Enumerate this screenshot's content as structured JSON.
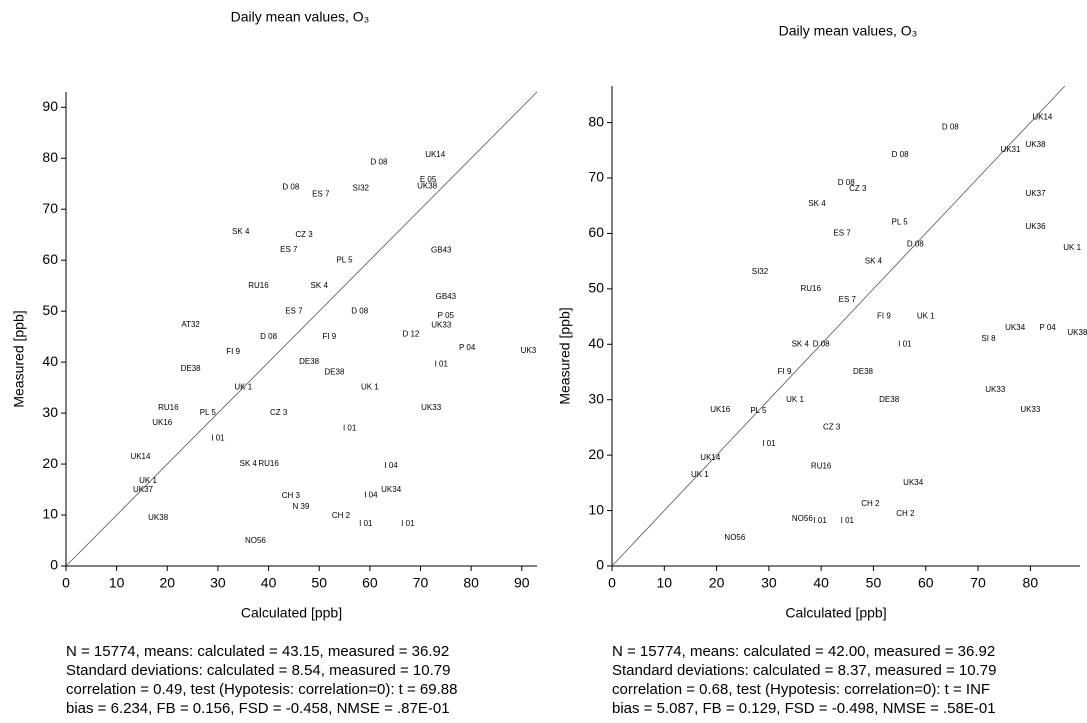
{
  "chart_data": [
    {
      "type": "scatter",
      "title": "Daily mean values, O₃",
      "xlabel": "Calculated [ppb]",
      "ylabel": "Measured [ppb]",
      "xlim": [
        0,
        93
      ],
      "ylim": [
        0,
        93
      ],
      "xticks": [
        0,
        10,
        20,
        30,
        40,
        50,
        60,
        70,
        80,
        90
      ],
      "yticks": [
        0,
        10,
        20,
        30,
        40,
        50,
        60,
        70,
        80,
        90
      ],
      "color": "#000000",
      "diagonal": true,
      "x": [
        72.9,
        61.8,
        91.3,
        79.2,
        24.6,
        37.4,
        67.5,
        59.2,
        54.3,
        64.2,
        15.2,
        16.2,
        14.7,
        19.0,
        20.2,
        24.6,
        34.5,
        44.4,
        50.3,
        58.2,
        71.3,
        71.5,
        74.1,
        75.0,
        75.0,
        74.1,
        68.1,
        74.1,
        72.1,
        44.4,
        46.4,
        18.2,
        60.2,
        64.2,
        40,
        45,
        50,
        35,
        55,
        42,
        48,
        38,
        52,
        30,
        58,
        44,
        36,
        60,
        28,
        47,
        53,
        40,
        33,
        56
      ],
      "y": [
        80.7,
        79.2,
        42.2,
        42.8,
        47.3,
        4.9,
        8.3,
        8.3,
        9.8,
        14.9,
        14.9,
        16.7,
        21.4,
        28.1,
        31.0,
        38.7,
        65.6,
        74.3,
        72.9,
        74.1,
        74.5,
        75.8,
        61.9,
        52.8,
        49.1,
        47.2,
        45.4,
        39.6,
        31.0,
        13.8,
        11.6,
        9.4,
        13.9,
        19.6,
        45,
        50,
        55,
        35,
        60,
        30,
        40,
        55,
        45,
        25,
        50,
        62,
        20,
        35,
        30,
        65,
        38,
        20,
        42,
        27
      ],
      "labels": [
        "UK14",
        "D 08",
        "UK3",
        "P 04",
        "AT32",
        "NO56",
        "I 01",
        "I 01",
        "CH 2",
        "UK34",
        "UK37",
        "UK 1",
        "UK14",
        "UK16",
        "RU16",
        "DE38",
        "SK 4",
        "D 08",
        "ES 7",
        "SI32",
        "UK38",
        "E 05",
        "GB43",
        "GB43",
        "P 05",
        "UK33",
        "D 12",
        "I 01",
        "UK33",
        "CH 3",
        "N 39",
        "UK38",
        "I 04",
        "I 04",
        "D 08",
        "ES 7",
        "SK 4",
        "UK 1",
        "PL 5",
        "CZ 3",
        "DE38",
        "RU16",
        "FI 9",
        "I 01",
        "D 08",
        "ES 7",
        "SK 4",
        "UK 1",
        "PL 5",
        "CZ 3",
        "DE38",
        "RU16",
        "FI 9",
        "I 01"
      ],
      "stats": [
        "N =  15774,  means:  calculated =   43.15, measured =   36.92",
        "Standard deviations: calculated =  8.54,  measured = 10.79",
        "correlation =    0.49,  test (Hypotesis: correlation=0): t = 69.88",
        "bias =    6.234,  FB =  0.156,  FSD = -0.458,  NMSE = .87E-01"
      ]
    },
    {
      "type": "scatter",
      "title": "Daily mean values, O₃",
      "xlabel": "Calculated [ppb]",
      "ylabel": "Measured [ppb]",
      "xlim": [
        0,
        89.5
      ],
      "ylim": [
        0,
        86.6
      ],
      "xticks": [
        0,
        10,
        20,
        30,
        40,
        50,
        60,
        70,
        80
      ],
      "yticks": [
        0,
        10,
        20,
        30,
        40,
        50,
        60,
        70,
        80
      ],
      "color": "#000000",
      "diagonal": true,
      "x": [
        82.3,
        64.7,
        81.0,
        55.1,
        76.2,
        81.0,
        39.2,
        81.0,
        88.0,
        28.3,
        83.3,
        77.1,
        89.0,
        80.0,
        73.3,
        56.1,
        49.4,
        45.0,
        39.8,
        57.6,
        23.5,
        20.7,
        18.8,
        16.8,
        36.4,
        44.8,
        72.0,
        40,
        45,
        50,
        35,
        55,
        42,
        48,
        38,
        52,
        30,
        58,
        44,
        36,
        60,
        28,
        47,
        53,
        40,
        33,
        56
      ],
      "y": [
        80.9,
        79.1,
        76.0,
        74.2,
        75.1,
        67.1,
        65.3,
        61.2,
        57.4,
        53.1,
        43.0,
        43.0,
        42.1,
        28.2,
        31.8,
        9.4,
        11.2,
        8.1,
        8.1,
        15.0,
        5.1,
        28.2,
        19.5,
        16.4,
        8.5,
        69.1,
        41.0,
        40,
        48,
        55,
        30,
        62,
        25,
        35,
        50,
        45,
        22,
        58,
        60,
        40,
        45,
        28,
        68,
        30,
        18,
        35,
        40
      ],
      "labels": [
        "UK14",
        "D 08",
        "UK38",
        "D 08",
        "UK31",
        "UK37",
        "SK 4",
        "UK36",
        "UK 1",
        "SI32",
        "P 04",
        "UK34",
        "UK38",
        "UK33",
        "UK33",
        "CH 2",
        "CH 2",
        "I 01",
        "I 01",
        "UK34",
        "NO56",
        "UK16",
        "UK14",
        "UK 1",
        "NO56",
        "D 08",
        "SI 8",
        "D 08",
        "ES 7",
        "SK 4",
        "UK 1",
        "PL 5",
        "CZ 3",
        "DE38",
        "RU16",
        "FI 9",
        "I 01",
        "D 08",
        "ES 7",
        "SK 4",
        "UK 1",
        "PL 5",
        "CZ 3",
        "DE38",
        "RU16",
        "FI 9",
        "I 01"
      ],
      "stats": [
        "N =  15774,   means:  calculated =   42.00, measured =   36.92",
        "Standard deviations: calculated =  8.37,  measured = 10.79",
        "correlation =    0.68,  test (Hypotesis: correlation=0): t = INF",
        "bias =     5.087,  FB =  0.129,  FSD = -0.498,  NMSE = .58E-01"
      ]
    }
  ]
}
